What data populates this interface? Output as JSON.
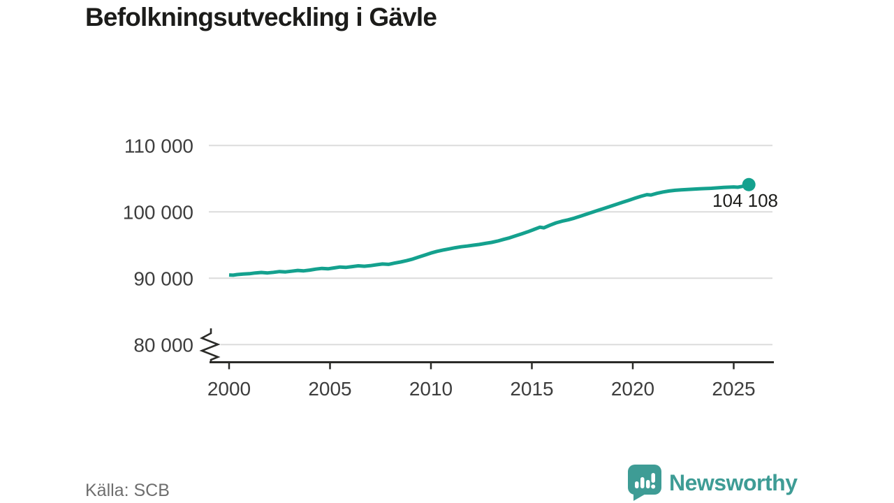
{
  "title": "Befolkningsutveckling i Gävle",
  "source": "Källa: SCB",
  "brand": {
    "name": "Newsworthy",
    "color": "#3E9C95",
    "icon": "newsworthy-speech-bubble-bar-chart-icon"
  },
  "colors": {
    "line": "#14A18E",
    "grid": "#DCDCDC",
    "axis": "#2B2B28",
    "title_text": "#1C1C1A",
    "tick_label_text": "#3D3D3D",
    "source_text": "#6E6E6E"
  },
  "chart_data": {
    "type": "line",
    "title": "Befolkningsutveckling i Gävle",
    "xlabel": "",
    "ylabel": "",
    "grid": "horizontal",
    "axis_break_at_bottom": true,
    "xlim": [
      1999,
      2027
    ],
    "ylim": [
      77300,
      112000
    ],
    "x_ticks": [
      {
        "value": 2000,
        "label": "2000"
      },
      {
        "value": 2005,
        "label": "2005"
      },
      {
        "value": 2010,
        "label": "2010"
      },
      {
        "value": 2015,
        "label": "2015"
      },
      {
        "value": 2020,
        "label": "2020"
      },
      {
        "value": 2025,
        "label": "2025"
      }
    ],
    "y_ticks": [
      {
        "value": 80000,
        "label": "80 000"
      },
      {
        "value": 90000,
        "label": "90 000"
      },
      {
        "value": 100000,
        "label": "100 000"
      },
      {
        "value": 110000,
        "label": "110 000"
      }
    ],
    "end_point_label": "104 108",
    "end_point_value": 104108,
    "series": [
      {
        "name": "Befolkning",
        "x": [
          2000,
          2000.2,
          2000.4,
          2000.7,
          2001,
          2001.3,
          2001.6,
          2001.9,
          2002.2,
          2002.5,
          2002.8,
          2003.1,
          2003.4,
          2003.7,
          2004,
          2004.3,
          2004.6,
          2004.9,
          2005.2,
          2005.5,
          2005.8,
          2006.1,
          2006.4,
          2006.7,
          2007,
          2007.3,
          2007.6,
          2007.9,
          2008.2,
          2008.5,
          2008.8,
          2009.1,
          2009.4,
          2009.7,
          2010,
          2010.3,
          2010.6,
          2010.9,
          2011.2,
          2011.5,
          2011.8,
          2012.1,
          2012.4,
          2012.7,
          2013,
          2013.3,
          2013.6,
          2013.9,
          2014.2,
          2014.5,
          2014.8,
          2015.1,
          2015.4,
          2015.6,
          2015.9,
          2016.2,
          2016.5,
          2016.8,
          2017.1,
          2017.4,
          2017.7,
          2018,
          2018.3,
          2018.6,
          2018.9,
          2019.2,
          2019.5,
          2019.8,
          2020.1,
          2020.4,
          2020.7,
          2020.9,
          2021.2,
          2021.5,
          2021.8,
          2022.1,
          2022.4,
          2022.7,
          2023,
          2023.3,
          2023.6,
          2023.9,
          2024.2,
          2024.5,
          2024.8,
          2025,
          2025.2,
          2025.45,
          2025.75
        ],
        "values": [
          90500,
          90460,
          90560,
          90640,
          90680,
          90800,
          90870,
          90800,
          90900,
          91010,
          90960,
          91060,
          91180,
          91120,
          91230,
          91380,
          91480,
          91420,
          91560,
          91700,
          91640,
          91760,
          91870,
          91810,
          91900,
          92030,
          92150,
          92100,
          92280,
          92450,
          92650,
          92900,
          93200,
          93500,
          93800,
          94050,
          94250,
          94420,
          94600,
          94750,
          94850,
          94980,
          95100,
          95250,
          95400,
          95600,
          95850,
          96100,
          96400,
          96700,
          97000,
          97350,
          97700,
          97600,
          98000,
          98350,
          98600,
          98800,
          99050,
          99350,
          99650,
          99950,
          100250,
          100550,
          100850,
          101150,
          101450,
          101750,
          102050,
          102350,
          102600,
          102550,
          102800,
          103000,
          103150,
          103250,
          103320,
          103380,
          103430,
          103480,
          103520,
          103560,
          103620,
          103680,
          103730,
          103760,
          103720,
          103850,
          104108
        ]
      }
    ]
  }
}
